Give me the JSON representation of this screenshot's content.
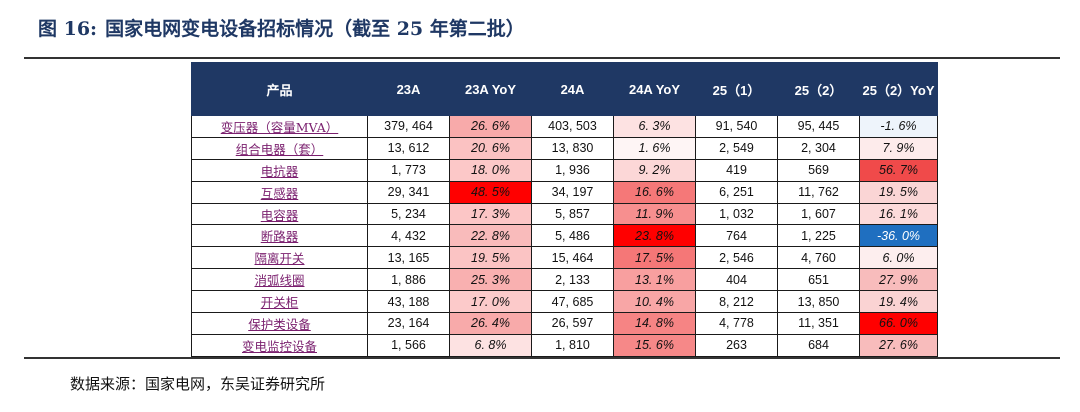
{
  "figure": {
    "label": "图 16:",
    "title": "国家电网变电设备招标情况（截至 25 年第二批）"
  },
  "table": {
    "headers": [
      "产品",
      "23A",
      "23A YoY",
      "24A",
      "24A YoY",
      "25（1）",
      "25（2）",
      "25（2）YoY"
    ],
    "rows": [
      {
        "product": "变压器（容量MVA）",
        "v23": "379, 464",
        "y23": "26. 6%",
        "v24": "403, 503",
        "y24": "6. 3%",
        "q1": "91, 540",
        "q2": "95, 445",
        "y25": "-1. 6%"
      },
      {
        "product": "组合电器（套）",
        "v23": "13, 612",
        "y23": "20. 6%",
        "v24": "13, 830",
        "y24": "1. 6%",
        "q1": "2, 549",
        "q2": "2, 304",
        "y25": "7. 9%"
      },
      {
        "product": "电抗器",
        "v23": "1, 773",
        "y23": "18. 0%",
        "v24": "1, 936",
        "y24": "9. 2%",
        "q1": "419",
        "q2": "569",
        "y25": "56. 7%"
      },
      {
        "product": "互感器",
        "v23": "29, 341",
        "y23": "48. 5%",
        "v24": "34, 197",
        "y24": "16. 6%",
        "q1": "6, 251",
        "q2": "11, 762",
        "y25": "19. 5%"
      },
      {
        "product": "电容器",
        "v23": "5, 234",
        "y23": "17. 3%",
        "v24": "5, 857",
        "y24": "11. 9%",
        "q1": "1, 032",
        "q2": "1, 607",
        "y25": "16. 1%"
      },
      {
        "product": "断路器",
        "v23": "4, 432",
        "y23": "22. 8%",
        "v24": "5, 486",
        "y24": "23. 8%",
        "q1": "764",
        "q2": "1, 225",
        "y25": "-36. 0%"
      },
      {
        "product": "隔离开关",
        "v23": "13, 165",
        "y23": "19. 5%",
        "v24": "15, 464",
        "y24": "17. 5%",
        "q1": "2, 546",
        "q2": "4, 760",
        "y25": "6. 0%"
      },
      {
        "product": "消弧线圈",
        "v23": "1, 886",
        "y23": "25. 3%",
        "v24": "2, 133",
        "y24": "13. 1%",
        "q1": "404",
        "q2": "651",
        "y25": "27. 9%"
      },
      {
        "product": "开关柜",
        "v23": "43, 188",
        "y23": "17. 0%",
        "v24": "47, 685",
        "y24": "10. 4%",
        "q1": "8, 212",
        "q2": "13, 850",
        "y25": "19. 4%"
      },
      {
        "product": "保护类设备",
        "v23": "23, 164",
        "y23": "26. 4%",
        "v24": "26, 597",
        "y24": "14. 8%",
        "q1": "4, 778",
        "q2": "11, 351",
        "y25": "66. 0%"
      },
      {
        "product": "变电监控设备",
        "v23": "1, 566",
        "y23": "6. 8%",
        "v24": "1, 810",
        "y24": "15. 6%",
        "q1": "263",
        "q2": "684",
        "y25": "27. 6%"
      }
    ],
    "heatmap_colors": {
      "y23": [
        "#f8aaaa",
        "#fbc2c2",
        "#fcc8c8",
        "#ff0000",
        "#fcc6c6",
        "#f9bbbb",
        "#fbc4c4",
        "#f9b0b0",
        "#fccaca",
        "#f8aaaa",
        "#fde2e2"
      ],
      "y24": [
        "#fde2e2",
        "#fef5f5",
        "#fcd7d7",
        "#f57878",
        "#f78f8f",
        "#ff0000",
        "#f57777",
        "#f89f9f",
        "#f8a6a6",
        "#f68484",
        "#f68888"
      ],
      "y25": [
        "#eef4fb",
        "#fdebeb",
        "#f04a4a",
        "#fad5d5",
        "#fcdada",
        "#1f6fc0",
        "#fdeeee",
        "#f8bcbc",
        "#fad3d3",
        "#ff0000",
        "#f8bcbc"
      ]
    }
  },
  "source": "数据来源：国家电网，东吴证券研究所"
}
